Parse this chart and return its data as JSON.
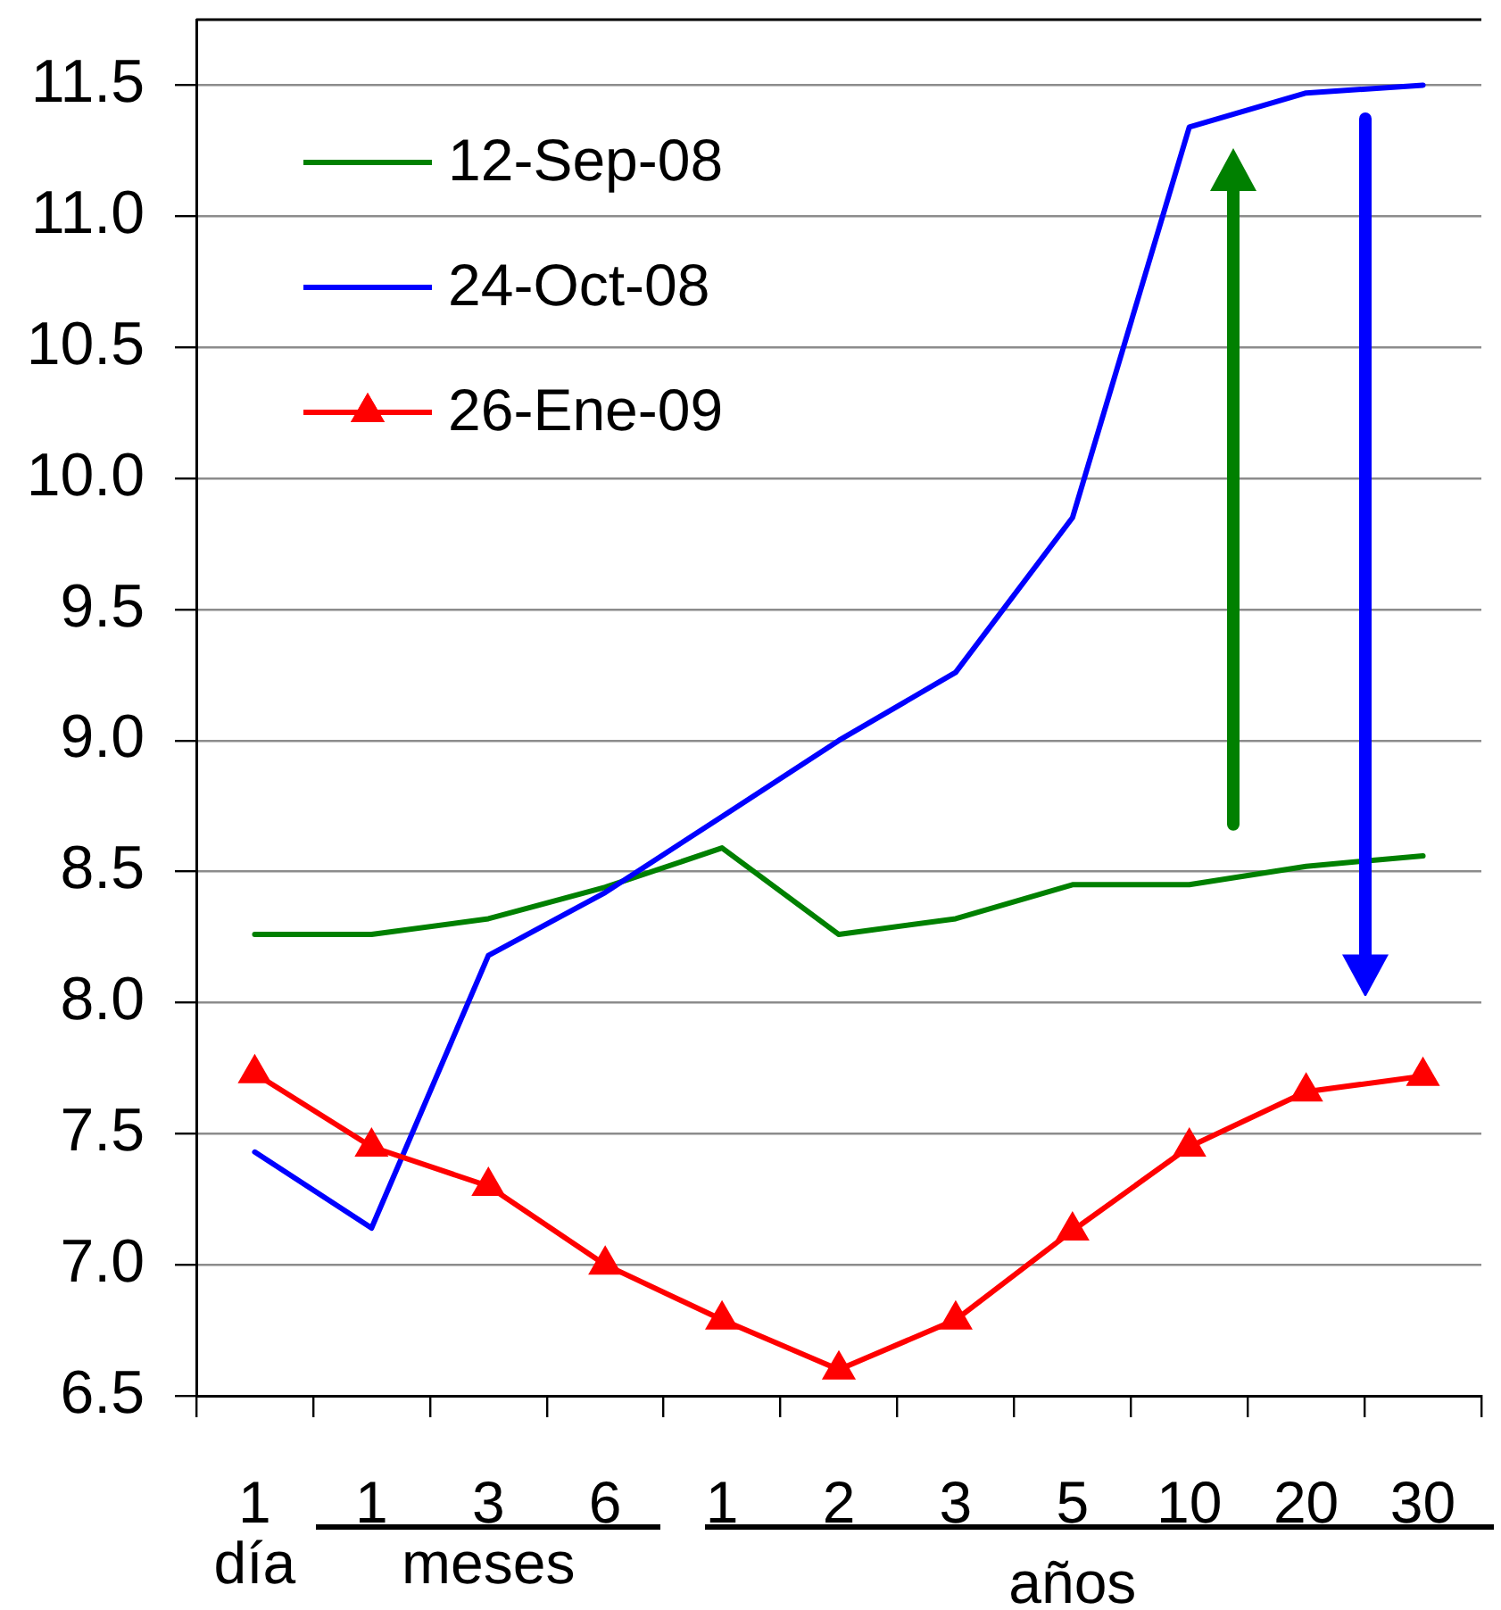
{
  "chart_data": {
    "type": "line",
    "categories": [
      "1",
      "1",
      "3",
      "6",
      "1",
      "2",
      "3",
      "5",
      "10",
      "20",
      "30"
    ],
    "series": [
      {
        "name": "12-Sep-08",
        "color": "#008000",
        "values": [
          8.26,
          8.26,
          8.32,
          8.44,
          8.59,
          8.26,
          8.32,
          8.45,
          8.45,
          8.52,
          8.56
        ]
      },
      {
        "name": "24-Oct-08",
        "color": "#0000ff",
        "values": [
          7.43,
          7.14,
          8.18,
          8.42,
          8.71,
          9.0,
          9.26,
          9.85,
          11.34,
          11.47,
          11.5
        ]
      },
      {
        "name": "26-Ene-09",
        "color": "#ff0000",
        "marker": "triangle",
        "values": [
          7.73,
          7.45,
          7.3,
          7.0,
          6.79,
          6.6,
          6.79,
          7.13,
          7.45,
          7.66,
          7.72
        ]
      }
    ],
    "ylim": [
      6.5,
      11.75
    ],
    "yticks": [
      6.5,
      {
        "value": 7,
        "label": "7.0"
      },
      7.5,
      {
        "value": 8,
        "label": "8.0"
      },
      8.5,
      {
        "value": 9,
        "label": "9.0"
      },
      9.5,
      {
        "value": 10,
        "label": "10.0"
      },
      10.5,
      {
        "value": 11,
        "label": "11.0"
      },
      11.5
    ],
    "grid": "y",
    "legend": "top left",
    "marker": "none",
    "line_style": "solid",
    "annotations": [
      "día",
      "meses",
      "años"
    ]
  }
}
